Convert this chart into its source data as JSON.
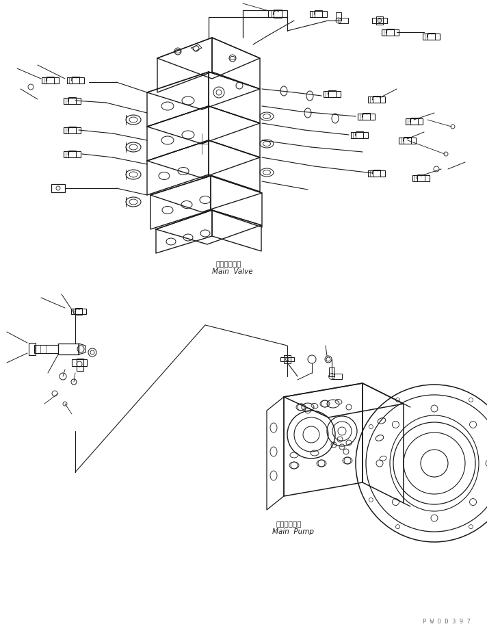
{
  "background_color": "#ffffff",
  "line_color": "#1a1a1a",
  "label_main_valve_jp": "メインバルブ",
  "label_main_valve_en": "Main  Valve",
  "label_main_pump_jp": "メインポンプ",
  "label_main_pump_en": "Main  Pump",
  "watermark": "P W O D 3 9 7",
  "fig_width": 7.12,
  "fig_height": 9.25,
  "dpi": 100
}
